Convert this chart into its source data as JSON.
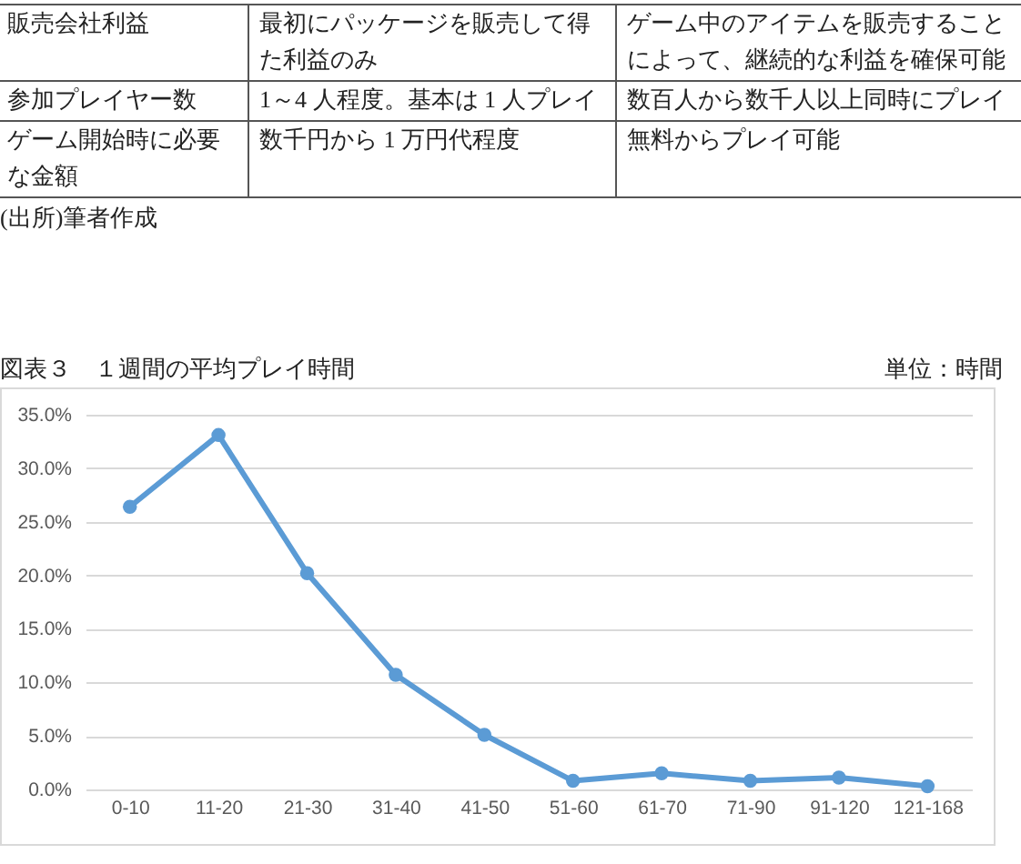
{
  "chart_data": [
    {
      "type": "other",
      "annotations": [
        "販売会社利益",
        "最初にパッケージを販売して得た利益のみ",
        "ゲーム中のアイテムを販売することによって、継続的な利益を確保可能",
        "参加プレイヤー数",
        "1～4 人程度。基本は 1 人プレイ",
        "数百人から数千人以上同時にプレイ",
        "ゲーム開始時に必要な金額",
        "数千円から 1 万円代程度",
        "無料からプレイ可能",
        "(出所)筆者作成"
      ]
    },
    {
      "type": "line",
      "title": "図表３　１週間の平均プレイ時間",
      "subtitle": "単位：時間",
      "categories": [
        "0-10",
        "11-20",
        "21-30",
        "31-40",
        "41-50",
        "51-60",
        "61-70",
        "71-90",
        "91-120",
        "121-168"
      ],
      "series": [
        {
          "color": "#5b9bd5",
          "values": [
            26.4,
            33.1,
            20.2,
            10.7,
            5.1,
            0.8,
            1.5,
            0.8,
            1.1,
            0.3
          ]
        }
      ],
      "ylim": [
        0,
        35
      ],
      "yticks": [
        {
          "value": 0,
          "label": "0.0%"
        },
        {
          "value": 5,
          "label": "5.0%"
        },
        {
          "value": 10,
          "label": "10.0%"
        },
        {
          "value": 15,
          "label": "15.0%"
        },
        {
          "value": 20,
          "label": "20.0%"
        },
        {
          "value": 25,
          "label": "25.0%"
        },
        {
          "value": 30,
          "label": "30.0%"
        },
        {
          "value": 35,
          "label": "35.0%"
        }
      ],
      "grid": "y",
      "marker": "circle",
      "line_style": "solid"
    }
  ]
}
